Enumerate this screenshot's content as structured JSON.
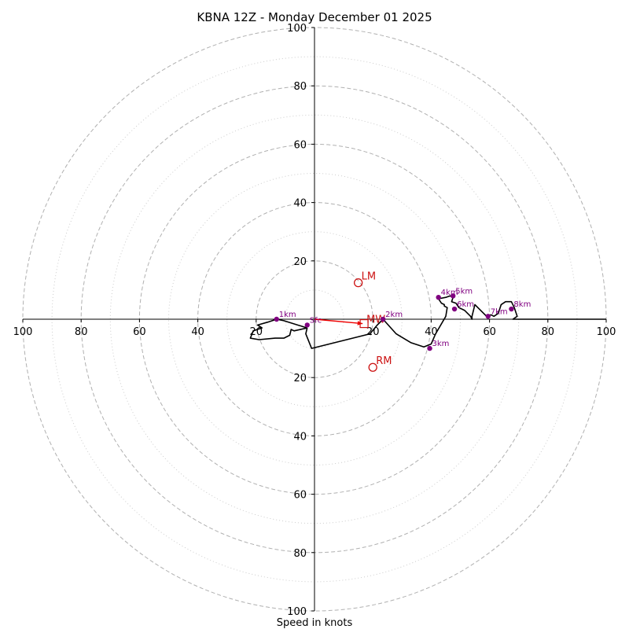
{
  "chart_data": {
    "type": "hodograph",
    "title": "KBNA 12Z - Monday December 01 2025",
    "xlabel": "Speed in knots",
    "range_max": 100,
    "ring_major": [
      20,
      40,
      60,
      80,
      100
    ],
    "ring_minor": [
      10,
      30,
      50,
      70,
      90
    ],
    "ticks": {
      "x_left": [
        "100",
        "80",
        "60",
        "40",
        "20"
      ],
      "x_right": [
        "20",
        "40",
        "60",
        "80",
        "100"
      ],
      "y_up": [
        "20",
        "40",
        "60",
        "80",
        "100"
      ],
      "y_down": [
        "20",
        "40",
        "60",
        "80",
        "100"
      ]
    },
    "hodograph_line": [
      [
        -2.5,
        -3
      ],
      [
        -3,
        -5
      ],
      [
        -1,
        -10
      ],
      [
        19,
        -5
      ],
      [
        21.5,
        -2
      ],
      [
        23.5,
        0
      ],
      [
        28,
        -5
      ],
      [
        33,
        -8
      ],
      [
        37.5,
        -9.5
      ],
      [
        40,
        -8.5
      ],
      [
        41.5,
        -5
      ],
      [
        45,
        1
      ],
      [
        45.5,
        4
      ],
      [
        44.5,
        4.5
      ],
      [
        44.5,
        5
      ],
      [
        43.5,
        5.5
      ],
      [
        42.5,
        7
      ],
      [
        45,
        7.5
      ],
      [
        46.5,
        8
      ],
      [
        47.5,
        7.5
      ],
      [
        47,
        6
      ],
      [
        48.5,
        5.5
      ],
      [
        49.5,
        4
      ],
      [
        51.5,
        3
      ],
      [
        53.5,
        1
      ],
      [
        54,
        0
      ],
      [
        54,
        1
      ],
      [
        55,
        5
      ],
      [
        57,
        3
      ],
      [
        59,
        1
      ],
      [
        60.5,
        1.5
      ],
      [
        61.5,
        1
      ],
      [
        63,
        2
      ],
      [
        64,
        5
      ],
      [
        65.5,
        6
      ],
      [
        67.5,
        6
      ],
      [
        68.5,
        4
      ],
      [
        69.5,
        1
      ],
      [
        68,
        0
      ],
      [
        74,
        0
      ],
      [
        80,
        0
      ],
      [
        90,
        0
      ],
      [
        100,
        0
      ]
    ],
    "surface_line": [
      [
        -2.5,
        -3
      ],
      [
        -7,
        -4
      ],
      [
        -8,
        -3.5
      ],
      [
        -8.5,
        -5.5
      ],
      [
        -10.5,
        -6.5
      ],
      [
        -13.5,
        -6.5
      ],
      [
        -19,
        -7
      ],
      [
        -22,
        -6.5
      ],
      [
        -21,
        -4
      ],
      [
        -18,
        -3
      ],
      [
        -19.5,
        -2
      ],
      [
        -16,
        -1
      ],
      [
        -13,
        0
      ],
      [
        -10.5,
        -0.5
      ],
      [
        -2.5,
        -3
      ]
    ],
    "height_points": [
      {
        "label": "Sfc",
        "u": -2.5,
        "v": -2
      },
      {
        "label": "1km",
        "u": -13,
        "v": 0
      },
      {
        "label": "2km",
        "u": 23.5,
        "v": 0
      },
      {
        "label": "3km",
        "u": 39.5,
        "v": -10
      },
      {
        "label": "4km",
        "u": 42.5,
        "v": 7.5
      },
      {
        "label": "5km",
        "u": 47.5,
        "v": 8
      },
      {
        "label": "6km",
        "u": 48,
        "v": 3.5
      },
      {
        "label": "7km",
        "u": 59.5,
        "v": 1
      },
      {
        "label": "8km",
        "u": 67.5,
        "v": 3.5
      }
    ],
    "storm_motion": [
      {
        "label": "LM",
        "u": 15,
        "v": 12.5
      },
      {
        "label": "RM",
        "u": 20,
        "v": -16.5
      }
    ],
    "mean_wind": {
      "label": "MW",
      "u": 17,
      "v": -1.5
    },
    "shear_vector": {
      "from": [
        0,
        0
      ],
      "to": [
        16.5,
        -1.5
      ]
    },
    "colors": {
      "line": "#000000",
      "points": "#800080",
      "storm": "#cc1111",
      "vector": "#ee0000",
      "grid": "#b0b0b0"
    }
  }
}
